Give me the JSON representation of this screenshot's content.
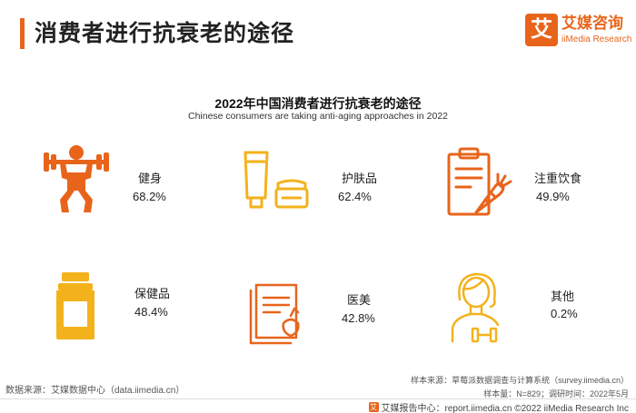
{
  "header": {
    "title": "消费者进行抗衰老的途径"
  },
  "logo": {
    "glyph": "艾",
    "cn": "艾媒咨询",
    "en": "iiMedia Research"
  },
  "chart_data": {
    "type": "table",
    "title": "2022年中国消费者进行抗衰老的途径",
    "subtitle": "Chinese consumers are taking anti-aging approaches in 2022",
    "unit": "%",
    "items": [
      {
        "label": "健身",
        "value": 68.2,
        "display": "68.2%",
        "icon": "weightlifting-icon",
        "color": "#e8641b"
      },
      {
        "label": "护肤品",
        "value": 62.4,
        "display": "62.4%",
        "icon": "skincare-icon",
        "color": "#f3b21c"
      },
      {
        "label": "注重饮食",
        "value": 49.9,
        "display": "49.9%",
        "icon": "clipboard-carrot-icon",
        "color": "#e8641b"
      },
      {
        "label": "保健品",
        "value": 48.4,
        "display": "48.4%",
        "icon": "supplement-bottle-icon",
        "color": "#f3b21c"
      },
      {
        "label": "医美",
        "value": 42.8,
        "display": "42.8%",
        "icon": "medical-document-icon",
        "color": "#e8641b"
      },
      {
        "label": "其他",
        "value": 0.2,
        "display": "0.2%",
        "icon": "person-dumbbell-icon",
        "color": "#f3b21c"
      }
    ]
  },
  "footer": {
    "source": "数据来源：艾媒数据中心（data.iimedia.cn）",
    "sample_source": "样本来源：草莓派数据调查与计算系统（survey.iimedia.cn）",
    "sample_info": "样本量：N=829；调研时间：2022年5月",
    "brand_line": "艾媒报告中心：report.iimedia.cn  ©2022  iiMedia Research  Inc"
  }
}
